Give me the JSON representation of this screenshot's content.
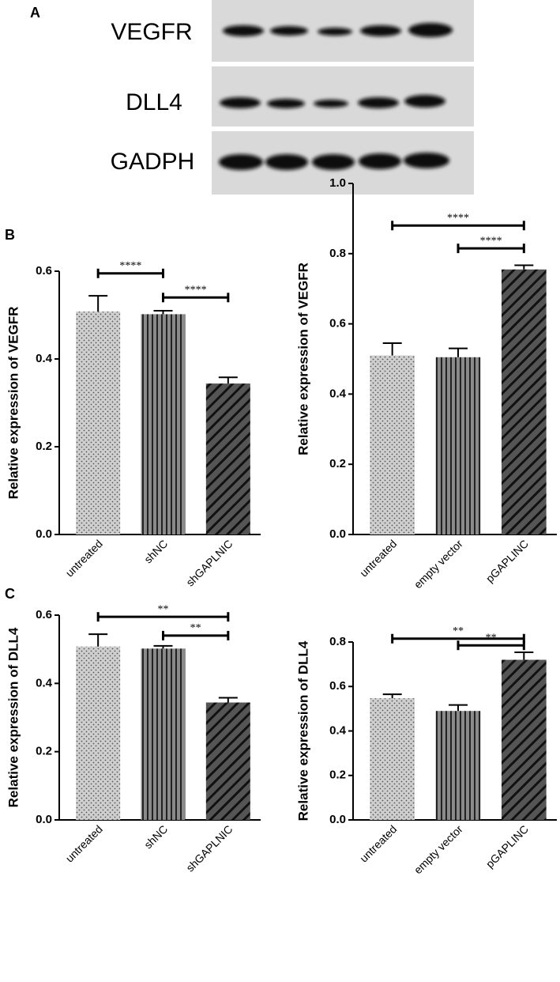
{
  "panels": [
    "A",
    "B",
    "C"
  ],
  "blot": {
    "labels": [
      "VEGFR",
      "DLL4",
      "GADPH"
    ]
  },
  "chart_data": [
    {
      "type": "bar",
      "ylabel": "Relative expression of VEGFR",
      "categories": [
        "untreated",
        "shNC",
        "shGAPLNIC"
      ],
      "values": [
        0.508,
        0.502,
        0.344
      ],
      "errors": [
        0.036,
        0.008,
        0.014
      ],
      "fills": [
        "dots",
        "vertical",
        "diagonal"
      ],
      "ylim": [
        0,
        0.6
      ],
      "yticks": [
        {
          "value": 0,
          "label": "0.0"
        },
        0.2,
        0.4,
        0.6
      ],
      "annotations": [
        {
          "text": "****",
          "start": "untreated",
          "end": "shNC",
          "y": 0.595
        },
        {
          "text": "****",
          "start": "shNC",
          "end": "shGAPLNIC",
          "y": 0.54
        }
      ]
    },
    {
      "type": "bar",
      "ylabel": "Relative expression of VEGFR",
      "categories": [
        "untreated",
        "empty vector",
        "pGAPLINC"
      ],
      "values": [
        0.51,
        0.505,
        0.755
      ],
      "errors": [
        0.035,
        0.025,
        0.012
      ],
      "fills": [
        "dots",
        "vertical",
        "diagonal"
      ],
      "ylim": [
        0,
        1
      ],
      "yticks": [
        {
          "value": 0,
          "label": "0.0"
        },
        0.2,
        0.4,
        0.6,
        0.8,
        {
          "value": 1,
          "label": "1.0"
        }
      ],
      "annotations": [
        {
          "text": "****",
          "start": "untreated",
          "end": "pGAPLINC",
          "y": 0.88
        },
        {
          "text": "****",
          "start": "empty vector",
          "end": "pGAPLINC",
          "y": 0.815
        }
      ]
    },
    {
      "type": "bar",
      "ylabel": "Relative expression of DLL4",
      "categories": [
        "untreated",
        "shNC",
        "shGAPLNIC"
      ],
      "values": [
        0.508,
        0.502,
        0.344
      ],
      "errors": [
        0.036,
        0.008,
        0.014
      ],
      "fills": [
        "dots",
        "vertical",
        "diagonal"
      ],
      "ylim": [
        0,
        0.6
      ],
      "yticks": [
        {
          "value": 0,
          "label": "0.0"
        },
        0.2,
        0.4,
        0.6
      ],
      "annotations": [
        {
          "text": "**",
          "start": "untreated",
          "end": "shGAPLNIC",
          "y": 0.595
        },
        {
          "text": "**",
          "start": "shNC",
          "end": "shGAPLNIC",
          "y": 0.54
        }
      ]
    },
    {
      "type": "bar",
      "ylabel": "Relative expression of DLL4",
      "categories": [
        "untreated",
        "empty vector",
        "pGAPLINC"
      ],
      "values": [
        0.547,
        0.49,
        0.72
      ],
      "errors": [
        0.018,
        0.027,
        0.034
      ],
      "fills": [
        "dots",
        "vertical",
        "diagonal"
      ],
      "ylim": [
        0,
        0.8
      ],
      "yticks": [
        {
          "value": 0,
          "label": "0.0"
        },
        0.2,
        0.4,
        0.6,
        0.8
      ],
      "annotations": [
        {
          "text": "**",
          "start": "untreated",
          "end": "pGAPLINC",
          "y": 0.815
        },
        {
          "text": "**",
          "start": "empty vector",
          "end": "pGAPLINC",
          "y": 0.785
        }
      ]
    }
  ]
}
